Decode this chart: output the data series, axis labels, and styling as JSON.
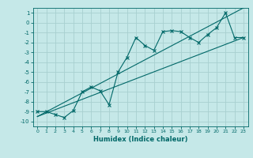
{
  "xlabel": "Humidex (Indice chaleur)",
  "ylabel": "",
  "bg_color": "#c5e8e8",
  "grid_color": "#a8d0d0",
  "line_color": "#006868",
  "xlim": [
    -0.5,
    23.5
  ],
  "ylim": [
    -10.5,
    1.5
  ],
  "xticks": [
    0,
    1,
    2,
    3,
    4,
    5,
    6,
    7,
    8,
    9,
    10,
    11,
    12,
    13,
    14,
    15,
    16,
    17,
    18,
    19,
    20,
    21,
    22,
    23
  ],
  "yticks": [
    1,
    0,
    -1,
    -2,
    -3,
    -4,
    -5,
    -6,
    -7,
    -8,
    -9,
    -10
  ],
  "main_x": [
    0,
    1,
    2,
    3,
    4,
    5,
    6,
    7,
    8,
    9,
    10,
    11,
    12,
    13,
    14,
    15,
    16,
    17,
    18,
    19,
    20,
    21,
    22,
    23
  ],
  "main_y": [
    -9.0,
    -9.0,
    -9.3,
    -9.6,
    -8.9,
    -7.0,
    -6.5,
    -6.9,
    -8.3,
    -5.0,
    -3.5,
    -1.5,
    -2.3,
    -2.8,
    -0.9,
    -0.8,
    -0.9,
    -1.5,
    -2.0,
    -1.2,
    -0.5,
    1.0,
    -1.5,
    -1.5
  ],
  "line1_x": [
    0,
    23
  ],
  "line1_y": [
    -9.5,
    1.5
  ],
  "line2_x": [
    0,
    23
  ],
  "line2_y": [
    -9.5,
    -1.5
  ],
  "tick_fontsize": 5,
  "xlabel_fontsize": 6
}
